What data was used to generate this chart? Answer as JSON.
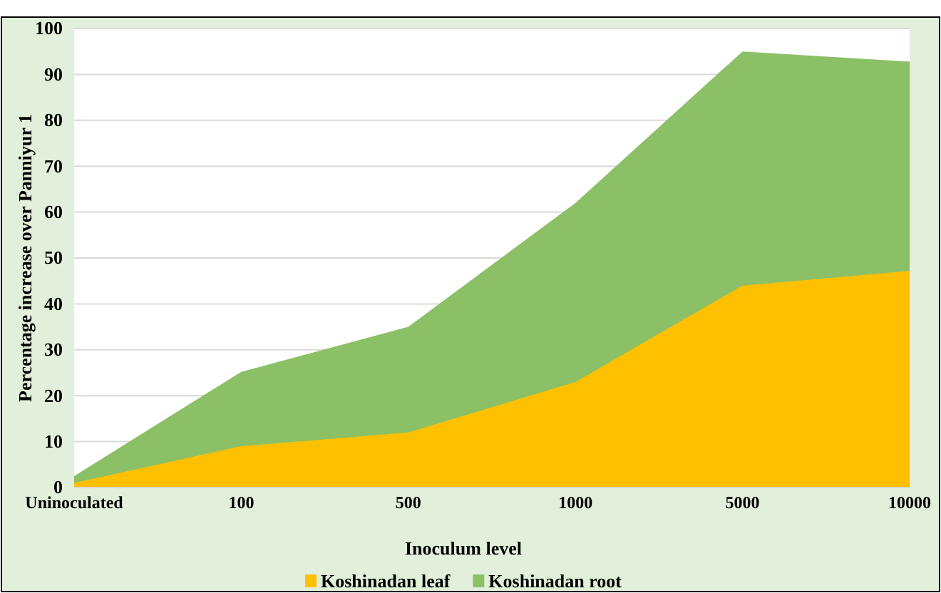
{
  "chart_data": {
    "type": "area",
    "xlabel": "Inoculum level",
    "ylabel": "Percentage increase over Panniyur 1",
    "categories": [
      "Uninoculated",
      "100",
      "500",
      "1000",
      "5000",
      "10000"
    ],
    "series": [
      {
        "name": "Koshinadan root",
        "color": "#8bc066",
        "values": [
          2.5,
          25.2,
          35,
          62,
          95,
          92.8
        ]
      },
      {
        "name": "Koshinadan leaf",
        "color": "#ffc000",
        "values": [
          1,
          9,
          12,
          23,
          44,
          47.2
        ]
      }
    ],
    "ylim": [
      0,
      100
    ],
    "yticks": [
      0,
      10,
      20,
      30,
      40,
      50,
      60,
      70,
      80,
      90,
      100
    ],
    "grid": "y",
    "legend": "bottom"
  }
}
